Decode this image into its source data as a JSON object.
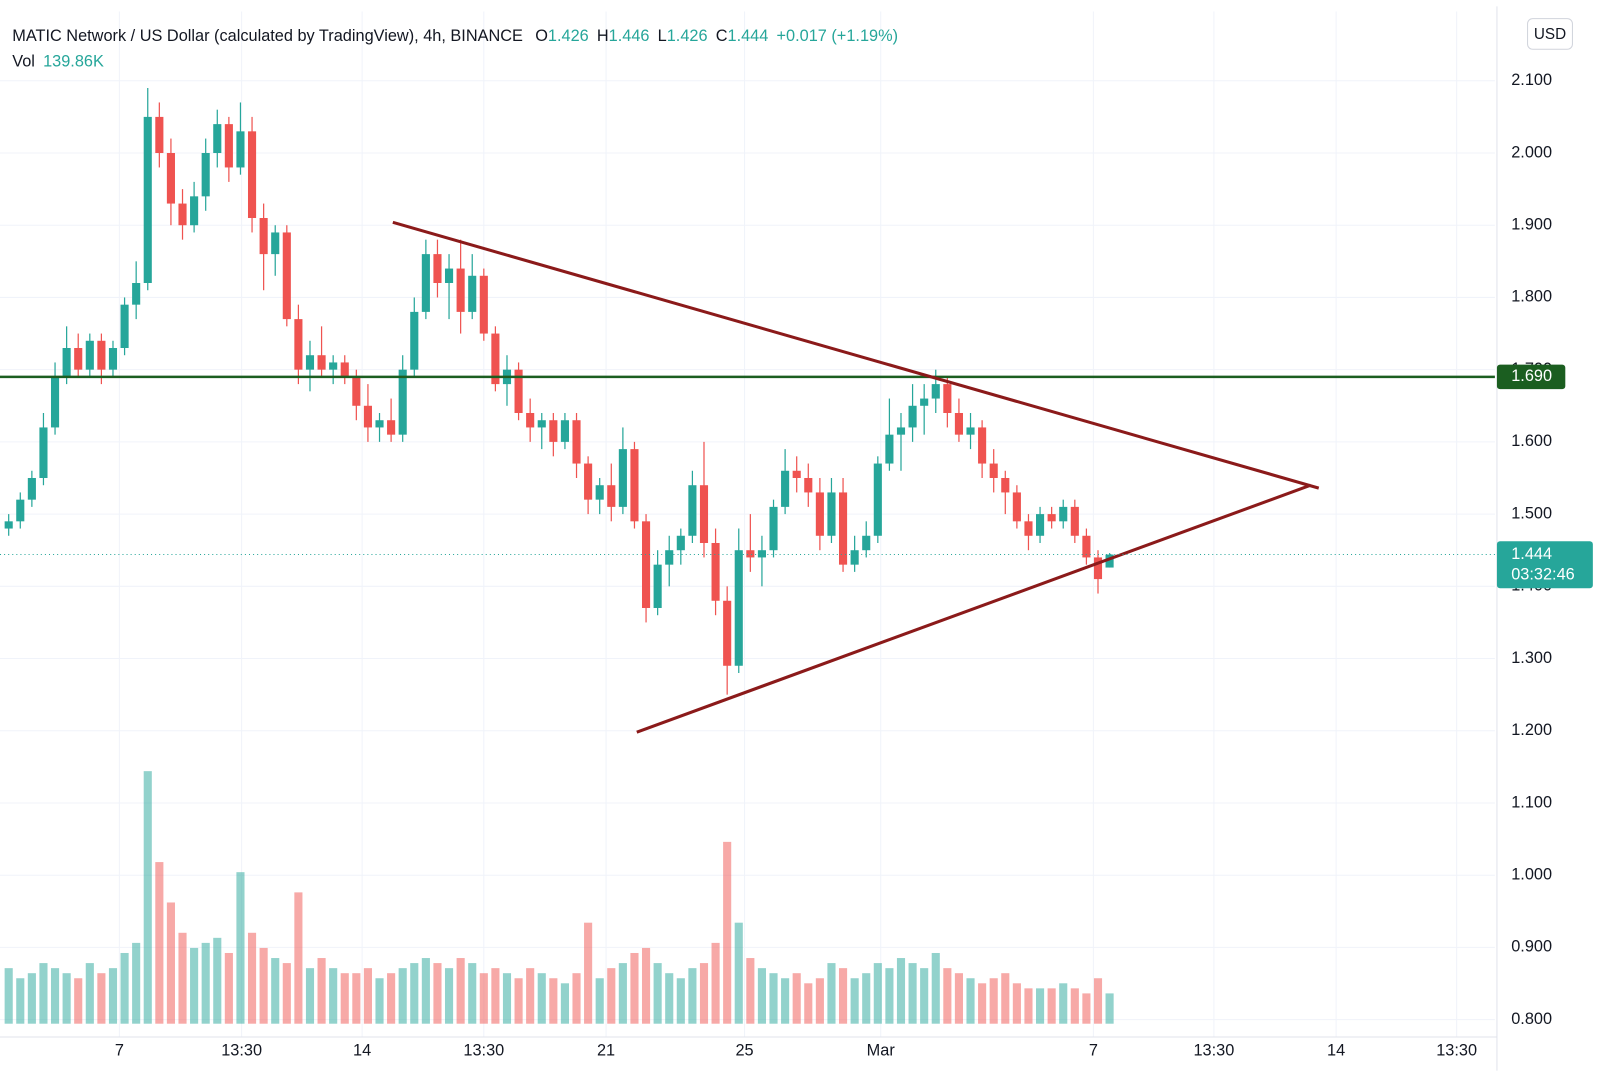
{
  "chart_data": {
    "type": "candlestick",
    "title": "MATIC Network / US Dollar (calculated by TradingView), 4h, BINANCE",
    "ohlc_legend": [
      {
        "label": "O",
        "value": 1.426
      },
      {
        "label": "H",
        "value": 1.446
      },
      {
        "label": "L",
        "value": 1.426
      },
      {
        "label": "C",
        "value": 1.444
      }
    ],
    "change_label": "+0.017 (+1.19%)",
    "volume_label": "Vol",
    "volume_value": "139.86K",
    "currency": "USD",
    "up_color": "#26a69a",
    "down_color": "#ef5350",
    "grid": true,
    "xlim": [
      0,
      258
    ],
    "xticks": [
      {
        "value": 20.6,
        "label": "7"
      },
      {
        "value": 41.7,
        "label": "13:30"
      },
      {
        "value": 62.5,
        "label": "14"
      },
      {
        "value": 83.5,
        "label": "13:30"
      },
      {
        "value": 104.6,
        "label": "21"
      },
      {
        "value": 128.5,
        "label": "25"
      },
      {
        "value": 152,
        "label": "Mar"
      },
      {
        "value": 188.7,
        "label": "7"
      },
      {
        "value": 209.5,
        "label": "13:30"
      },
      {
        "value": 230.6,
        "label": "14"
      },
      {
        "value": 251.4,
        "label": "13:30"
      }
    ],
    "ylim": [
      0.776,
      2.196
    ],
    "yticks": [
      {
        "value": 0.8,
        "label": "0.800"
      },
      {
        "value": 0.9,
        "label": "0.900"
      },
      {
        "value": 1.0,
        "label": "1.000"
      },
      {
        "value": 1.1,
        "label": "1.100"
      },
      {
        "value": 1.2,
        "label": "1.200"
      },
      {
        "value": 1.3,
        "label": "1.300"
      },
      {
        "value": 1.4,
        "label": "1.400"
      },
      {
        "value": 1.5,
        "label": "1.500"
      },
      {
        "value": 1.6,
        "label": "1.600"
      },
      {
        "value": 1.7,
        "label": "1.700"
      },
      {
        "value": 1.8,
        "label": "1.800"
      },
      {
        "value": 1.9,
        "label": "1.900"
      },
      {
        "value": 2.0,
        "label": "2.000"
      },
      {
        "value": 2.1,
        "label": "2.100"
      }
    ],
    "vlim": [
      0,
      300
    ],
    "x": [
      1.5,
      3.5,
      5.5,
      7.5,
      9.5,
      11.5,
      13.5,
      15.5,
      17.5,
      19.5,
      21.5,
      23.5,
      25.5,
      27.5,
      29.5,
      31.5,
      33.5,
      35.5,
      37.5,
      39.5,
      41.5,
      43.5,
      45.5,
      47.5,
      49.5,
      51.5,
      53.5,
      55.5,
      57.5,
      59.5,
      61.5,
      63.5,
      65.5,
      67.5,
      69.5,
      71.5,
      73.5,
      75.5,
      77.5,
      79.5,
      81.5,
      83.5,
      85.5,
      87.5,
      89.5,
      91.5,
      93.5,
      95.5,
      97.5,
      99.5,
      101.5,
      103.5,
      105.5,
      107.5,
      109.5,
      111.5,
      113.5,
      115.5,
      117.5,
      119.5,
      121.5,
      123.5,
      125.5,
      127.5,
      129.5,
      131.5,
      133.5,
      135.5,
      137.5,
      139.5,
      141.5,
      143.5,
      145.5,
      147.5,
      149.5,
      151.5,
      153.5,
      155.5,
      157.5,
      159.5,
      161.5,
      163.5,
      165.5,
      167.5,
      169.5,
      171.5,
      173.5,
      175.5,
      177.5,
      179.5,
      181.5,
      183.5,
      185.5,
      187.5,
      189.5,
      191.5
    ],
    "open": [
      1.48,
      1.49,
      1.52,
      1.55,
      1.62,
      1.69,
      1.73,
      1.7,
      1.74,
      1.7,
      1.73,
      1.79,
      1.82,
      2.05,
      2.0,
      1.93,
      1.9,
      1.94,
      2.0,
      2.04,
      1.98,
      2.03,
      1.91,
      1.86,
      1.89,
      1.77,
      1.7,
      1.72,
      1.7,
      1.71,
      1.69,
      1.65,
      1.62,
      1.63,
      1.61,
      1.7,
      1.78,
      1.86,
      1.82,
      1.84,
      1.78,
      1.83,
      1.75,
      1.68,
      1.7,
      1.64,
      1.62,
      1.63,
      1.6,
      1.63,
      1.57,
      1.52,
      1.54,
      1.51,
      1.59,
      1.49,
      1.37,
      1.43,
      1.45,
      1.47,
      1.54,
      1.46,
      1.38,
      1.29,
      1.45,
      1.44,
      1.45,
      1.51,
      1.56,
      1.55,
      1.53,
      1.47,
      1.53,
      1.43,
      1.45,
      1.47,
      1.57,
      1.61,
      1.62,
      1.65,
      1.66,
      1.68,
      1.64,
      1.61,
      1.62,
      1.57,
      1.55,
      1.53,
      1.49,
      1.47,
      1.5,
      1.49,
      1.51,
      1.47,
      1.44,
      1.426
    ],
    "high": [
      1.5,
      1.53,
      1.56,
      1.64,
      1.71,
      1.76,
      1.75,
      1.75,
      1.75,
      1.74,
      1.8,
      1.85,
      2.09,
      2.07,
      2.02,
      1.95,
      1.96,
      2.02,
      2.06,
      2.05,
      2.07,
      2.05,
      1.93,
      1.9,
      1.9,
      1.79,
      1.74,
      1.76,
      1.72,
      1.72,
      1.7,
      1.68,
      1.64,
      1.66,
      1.72,
      1.8,
      1.88,
      1.88,
      1.86,
      1.88,
      1.86,
      1.84,
      1.76,
      1.72,
      1.71,
      1.66,
      1.64,
      1.64,
      1.64,
      1.64,
      1.58,
      1.55,
      1.57,
      1.62,
      1.6,
      1.5,
      1.45,
      1.47,
      1.48,
      1.56,
      1.6,
      1.48,
      1.4,
      1.48,
      1.5,
      1.47,
      1.52,
      1.59,
      1.58,
      1.57,
      1.55,
      1.55,
      1.55,
      1.47,
      1.49,
      1.58,
      1.66,
      1.64,
      1.68,
      1.68,
      1.7,
      1.69,
      1.66,
      1.64,
      1.63,
      1.59,
      1.56,
      1.54,
      1.5,
      1.51,
      1.51,
      1.52,
      1.52,
      1.48,
      1.45,
      1.446
    ],
    "low": [
      1.47,
      1.48,
      1.51,
      1.54,
      1.61,
      1.68,
      1.69,
      1.69,
      1.68,
      1.69,
      1.72,
      1.77,
      1.81,
      1.98,
      1.9,
      1.88,
      1.89,
      1.92,
      1.98,
      1.96,
      1.97,
      1.89,
      1.81,
      1.83,
      1.76,
      1.68,
      1.67,
      1.69,
      1.68,
      1.68,
      1.63,
      1.6,
      1.6,
      1.6,
      1.6,
      1.69,
      1.77,
      1.8,
      1.77,
      1.75,
      1.77,
      1.74,
      1.67,
      1.65,
      1.63,
      1.6,
      1.59,
      1.58,
      1.59,
      1.55,
      1.5,
      1.5,
      1.49,
      1.5,
      1.48,
      1.35,
      1.36,
      1.4,
      1.43,
      1.46,
      1.44,
      1.36,
      1.25,
      1.28,
      1.42,
      1.4,
      1.44,
      1.5,
      1.53,
      1.51,
      1.45,
      1.46,
      1.42,
      1.42,
      1.44,
      1.46,
      1.56,
      1.56,
      1.6,
      1.61,
      1.64,
      1.62,
      1.6,
      1.59,
      1.55,
      1.53,
      1.5,
      1.48,
      1.45,
      1.46,
      1.48,
      1.48,
      1.46,
      1.43,
      1.39,
      1.426
    ],
    "close": [
      1.49,
      1.52,
      1.55,
      1.62,
      1.69,
      1.73,
      1.7,
      1.74,
      1.7,
      1.73,
      1.79,
      1.82,
      2.05,
      2.0,
      1.93,
      1.9,
      1.94,
      2.0,
      2.04,
      1.98,
      2.03,
      1.91,
      1.86,
      1.89,
      1.77,
      1.7,
      1.72,
      1.7,
      1.71,
      1.69,
      1.65,
      1.62,
      1.63,
      1.61,
      1.7,
      1.78,
      1.86,
      1.82,
      1.84,
      1.78,
      1.83,
      1.75,
      1.68,
      1.7,
      1.64,
      1.62,
      1.63,
      1.6,
      1.63,
      1.57,
      1.52,
      1.54,
      1.51,
      1.59,
      1.49,
      1.37,
      1.43,
      1.45,
      1.47,
      1.54,
      1.46,
      1.38,
      1.29,
      1.45,
      1.44,
      1.45,
      1.51,
      1.56,
      1.55,
      1.53,
      1.47,
      1.53,
      1.43,
      1.45,
      1.47,
      1.57,
      1.61,
      1.62,
      1.65,
      1.66,
      1.68,
      1.64,
      1.61,
      1.62,
      1.57,
      1.55,
      1.53,
      1.49,
      1.47,
      1.5,
      1.49,
      1.51,
      1.47,
      1.44,
      1.41,
      1.444
    ],
    "volume": [
      55,
      45,
      50,
      60,
      55,
      50,
      45,
      60,
      50,
      55,
      70,
      80,
      250,
      160,
      120,
      90,
      75,
      80,
      85,
      70,
      150,
      90,
      75,
      65,
      60,
      130,
      55,
      65,
      55,
      50,
      50,
      55,
      45,
      50,
      55,
      60,
      65,
      60,
      55,
      65,
      60,
      50,
      55,
      50,
      45,
      55,
      50,
      45,
      40,
      50,
      100,
      45,
      55,
      60,
      70,
      75,
      60,
      50,
      45,
      55,
      60,
      80,
      180,
      100,
      65,
      55,
      50,
      45,
      50,
      40,
      45,
      60,
      55,
      45,
      50,
      60,
      55,
      65,
      60,
      55,
      70,
      55,
      50,
      45,
      40,
      45,
      50,
      40,
      35,
      35,
      35,
      40,
      35,
      30,
      45,
      30
    ],
    "hlines": [
      {
        "value": 1.69,
        "label": "1.690",
        "color": "#1b5e20"
      }
    ],
    "last_price": {
      "value": 1.444,
      "label": "1.444",
      "countdown": "03:32:46",
      "color": "#26a69a"
    },
    "trendlines": [
      {
        "x": [
          67.8,
          227.6
        ],
        "y": [
          1.904,
          1.536
        ],
        "color": "#8b1a1a"
      },
      {
        "x": [
          109.9,
          226.2
        ],
        "y": [
          1.198,
          1.54
        ],
        "color": "#8b1a1a"
      }
    ]
  }
}
